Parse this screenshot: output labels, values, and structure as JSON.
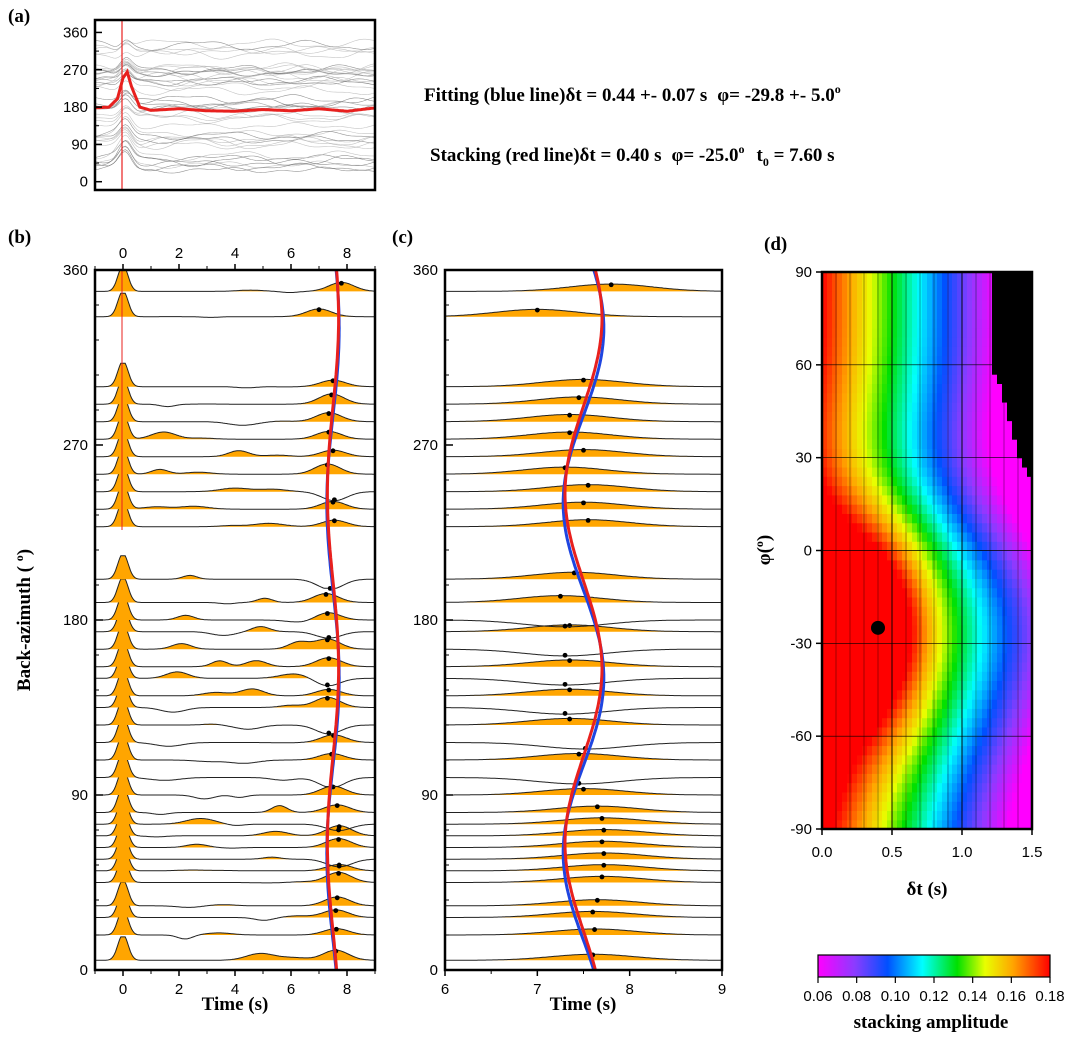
{
  "panel_labels": {
    "a": "(a)",
    "b": "(b)",
    "c": "(c)",
    "d": "(d)"
  },
  "annotations": {
    "fitting_prefix": "Fitting (blue line)",
    "fitting_dt": "δt = 0.44 +- 0.07 s",
    "fitting_phi_sym": "φ",
    "fitting_phi": "= -29.8 +- 5.0",
    "deg": "o",
    "stacking_prefix": "Stacking (red line)",
    "stacking_dt": "δt = 0.40 s",
    "stacking_phi_sym": "φ",
    "stacking_phi": "= -25.0",
    "stacking_t": "t",
    "stacking_t_sub": "0",
    "stacking_t_val": " = 7.60 s"
  },
  "colors": {
    "fill": "#FFA500",
    "red": "#E8201E",
    "blue": "#1F45E0",
    "black": "#000000"
  },
  "chart_data": [
    {
      "panel": "a",
      "type": "line",
      "title": "",
      "xlim": [
        -1,
        9
      ],
      "ylim": [
        -20,
        390
      ],
      "y_ticks": [
        0,
        90,
        180,
        270,
        360
      ],
      "vertical_line_x": 0,
      "series": [
        {
          "color": "red",
          "x": [
            -1,
            -0.5,
            -0.2,
            0,
            0.15,
            0.3,
            0.6,
            1,
            2,
            3,
            4,
            5,
            6,
            7,
            8,
            9
          ],
          "y": [
            178,
            180,
            200,
            250,
            265,
            230,
            180,
            172,
            176,
            171,
            170,
            174,
            171,
            176,
            170,
            178
          ]
        }
      ]
    },
    {
      "panel": "b",
      "type": "line",
      "xlabel": "Time (s)",
      "ylabel": "Back-azimuth (o)",
      "xlim": [
        -1,
        9
      ],
      "ylim": [
        0,
        360
      ],
      "x_ticks": [
        0,
        2,
        4,
        6,
        8
      ],
      "y_ticks": [
        0,
        90,
        180,
        270,
        360
      ],
      "traces_baz": [
        5,
        18,
        27,
        33,
        45,
        51,
        57,
        63,
        69,
        75,
        81,
        90,
        99,
        108,
        117,
        126,
        135,
        141,
        150,
        156,
        165,
        174,
        180,
        189,
        201,
        228,
        237,
        246,
        255,
        264,
        273,
        282,
        291,
        300,
        336,
        349
      ],
      "traces_dot_t": [
        7.6,
        7.62,
        7.6,
        7.65,
        7.7,
        7.72,
        7.72,
        7.7,
        7.72,
        7.7,
        7.65,
        7.5,
        7.45,
        7.45,
        7.52,
        7.35,
        7.3,
        7.35,
        7.3,
        7.35,
        7.3,
        7.35,
        7.3,
        7.25,
        7.4,
        7.55,
        7.5,
        7.55,
        7.3,
        7.5,
        7.35,
        7.35,
        7.45,
        7.5,
        7.0,
        7.8
      ],
      "stacking_curve": {
        "color": "red",
        "t0": 7.6,
        "dt": 0.4,
        "phi": -25.0
      },
      "fitting_curve": {
        "color": "blue",
        "t0": 7.6,
        "dt": 0.44,
        "phi": -29.8
      }
    },
    {
      "panel": "c",
      "type": "line",
      "xlabel": "Time (s)",
      "xlim": [
        6,
        9
      ],
      "ylim": [
        0,
        360
      ],
      "x_ticks": [
        6,
        7,
        8,
        9
      ],
      "y_ticks": [
        0,
        90,
        180,
        270,
        360
      ]
    },
    {
      "panel": "d",
      "type": "heatmap",
      "xlabel": "δt (s)",
      "ylabel": "φ(o)",
      "xlim": [
        0,
        1.5
      ],
      "ylim": [
        -90,
        90
      ],
      "x_ticks": [
        "0.0",
        "0.5",
        "1.0",
        "1.5"
      ],
      "y_ticks": [
        -90,
        -60,
        -30,
        0,
        30,
        60,
        90
      ],
      "best_point": {
        "dt": 0.4,
        "phi": -25.0
      },
      "colorbar": {
        "label": "stacking amplitude",
        "min": 0.06,
        "max": 0.18,
        "ticks": [
          "0.06",
          "0.08",
          "0.10",
          "0.12",
          "0.14",
          "0.16",
          "0.18"
        ]
      }
    }
  ]
}
